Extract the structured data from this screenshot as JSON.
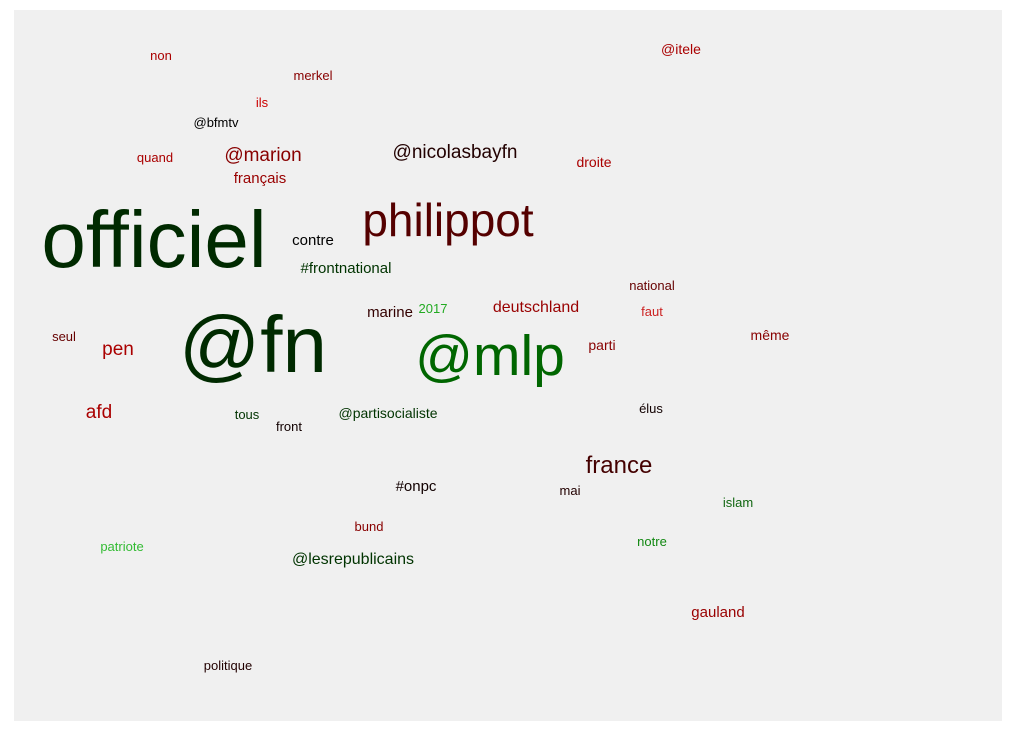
{
  "chart_data": {
    "type": "wordcloud",
    "words": [
      {
        "text": "officiel",
        "color": "#002a00"
      },
      {
        "text": "@fn",
        "color": "#002a00"
      },
      {
        "text": "@mlp",
        "color": "#006600"
      },
      {
        "text": "philippot",
        "color": "#550000"
      },
      {
        "text": "france",
        "color": "#440000"
      },
      {
        "text": "@nicolasbayfn",
        "color": "#220000"
      },
      {
        "text": "@marion",
        "color": "#880000"
      },
      {
        "text": "pen",
        "color": "#aa0000"
      },
      {
        "text": "afd",
        "color": "#aa0000"
      },
      {
        "text": "deutschland",
        "color": "#990000"
      },
      {
        "text": "@lesrepublicains",
        "color": "#003300"
      },
      {
        "text": "#frontnational",
        "color": "#003300"
      },
      {
        "text": "#onpc",
        "color": "#110000"
      },
      {
        "text": "marine",
        "color": "#330000"
      },
      {
        "text": "contre",
        "color": "#000000"
      },
      {
        "text": "@partisocialiste",
        "color": "#003300"
      },
      {
        "text": "français",
        "color": "#990000"
      },
      {
        "text": "gauland",
        "color": "#990000"
      },
      {
        "text": "droite",
        "color": "#aa0000"
      },
      {
        "text": "@itele",
        "color": "#aa0000"
      },
      {
        "text": "parti",
        "color": "#880000"
      },
      {
        "text": "même",
        "color": "#880000"
      },
      {
        "text": "national",
        "color": "#660000"
      },
      {
        "text": "2017",
        "color": "#22aa22"
      },
      {
        "text": "faut",
        "color": "#cc2222"
      },
      {
        "text": "ils",
        "color": "#cc0000"
      },
      {
        "text": "non",
        "color": "#aa0000"
      },
      {
        "text": "merkel",
        "color": "#880000"
      },
      {
        "text": "@bfmtv",
        "color": "#000000"
      },
      {
        "text": "quand",
        "color": "#aa0000"
      },
      {
        "text": "seul",
        "color": "#660000"
      },
      {
        "text": "tous",
        "color": "#003300"
      },
      {
        "text": "front",
        "color": "#110000"
      },
      {
        "text": "élus",
        "color": "#110000"
      },
      {
        "text": "mai",
        "color": "#220000"
      },
      {
        "text": "islam",
        "color": "#116611"
      },
      {
        "text": "notre",
        "color": "#118811"
      },
      {
        "text": "bund",
        "color": "#880000"
      },
      {
        "text": "patriote",
        "color": "#33bb33"
      },
      {
        "text": "politique",
        "color": "#220000"
      }
    ]
  }
}
